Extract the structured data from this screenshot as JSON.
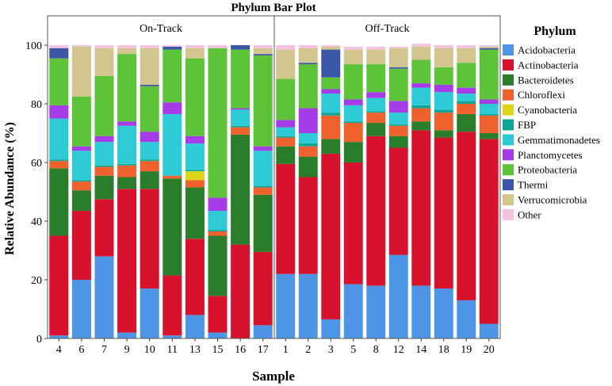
{
  "chart_data": {
    "type": "bar",
    "stacked": true,
    "title": "Phylum Bar Plot",
    "xlabel": "Sample",
    "ylabel": "Relative Abundance (%)",
    "ylim": [
      0,
      110
    ],
    "yticks": [
      0,
      20,
      40,
      60,
      80,
      100
    ],
    "grid": false,
    "legend_title": "Phylum",
    "legend_position": "right",
    "series": [
      {
        "name": "Acidobacteria",
        "color": "#4f95e6"
      },
      {
        "name": "Actinobacteria",
        "color": "#d7122c"
      },
      {
        "name": "Bacteroidetes",
        "color": "#2a7d2a"
      },
      {
        "name": "Chloroflexi",
        "color": "#f0622d"
      },
      {
        "name": "Cyanobacteria",
        "color": "#dfd51c"
      },
      {
        "name": "FBP",
        "color": "#11a597"
      },
      {
        "name": "Gemmatimonadetes",
        "color": "#2ecbd6"
      },
      {
        "name": "Planctomycetes",
        "color": "#a53ce8"
      },
      {
        "name": "Proteobacteria",
        "color": "#5dc43a"
      },
      {
        "name": "Thermi",
        "color": "#3d57a8"
      },
      {
        "name": "Verrucomicrobia",
        "color": "#d3c58e"
      },
      {
        "name": "Other",
        "color": "#f6c2e2"
      }
    ],
    "panels": [
      {
        "label": "On-Track",
        "samples": [
          {
            "name": "4",
            "values": [
              1,
              34,
              23,
              2.5,
              0,
              0.5,
              14,
              4.5,
              16,
              3.5,
              0,
              1
            ]
          },
          {
            "name": "6",
            "values": [
              20,
              23.5,
              7,
              3,
              0,
              0.5,
              10,
              1.5,
              17,
              0,
              17,
              0.5
            ]
          },
          {
            "name": "7",
            "values": [
              28,
              19.5,
              8,
              3,
              0,
              0.5,
              8,
              2,
              20.5,
              0,
              9.5,
              1
            ]
          },
          {
            "name": "9",
            "values": [
              2,
              49,
              4,
              4,
              0,
              0.5,
              13,
              1.5,
              23,
              0,
              2,
              1
            ]
          },
          {
            "name": "10",
            "values": [
              17,
              34,
              6,
              3.5,
              0,
              0.5,
              6,
              3.5,
              15.5,
              0.5,
              12.5,
              1
            ]
          },
          {
            "name": "11",
            "values": [
              1,
              20.5,
              33,
              1,
              0,
              0,
              21,
              4,
              18,
              1,
              0,
              0.5
            ]
          },
          {
            "name": "13",
            "values": [
              8,
              26,
              17.5,
              2.5,
              3,
              0.5,
              9,
              2.5,
              26.5,
              0,
              3.5,
              1
            ]
          },
          {
            "name": "15",
            "values": [
              2,
              12.5,
              20.5,
              1.5,
              0,
              0.5,
              6.5,
              4.5,
              51,
              0,
              0,
              1
            ]
          },
          {
            "name": "16",
            "values": [
              0,
              32,
              37.5,
              2.5,
              0,
              0.5,
              5.5,
              0.5,
              20,
              1.5,
              0,
              0
            ]
          },
          {
            "name": "17",
            "values": [
              4.5,
              25,
              19.5,
              2.5,
              0,
              0.5,
              12,
              1.5,
              31,
              0.5,
              2,
              1
            ]
          }
        ]
      },
      {
        "label": "Off-Track",
        "samples": [
          {
            "name": "1",
            "values": [
              22,
              37.5,
              6,
              3,
              0,
              0.5,
              3,
              2.5,
              14,
              0,
              10,
              1.5
            ]
          },
          {
            "name": "2",
            "values": [
              22,
              33,
              7,
              3.5,
              0,
              1,
              3.5,
              8.5,
              15,
              0.5,
              5,
              1
            ]
          },
          {
            "name": "3",
            "values": [
              6.5,
              56.5,
              5,
              8,
              0,
              1,
              6.5,
              1.5,
              4,
              9.5,
              1,
              0.5
            ]
          },
          {
            "name": "5",
            "values": [
              18.5,
              41.5,
              7,
              6.5,
              0,
              0.5,
              5.5,
              2,
              12,
              0,
              5,
              1
            ]
          },
          {
            "name": "8",
            "values": [
              18,
              51,
              4.5,
              3.5,
              0,
              0.5,
              4.5,
              2,
              9.5,
              0,
              5,
              1
            ]
          },
          {
            "name": "12",
            "values": [
              28.5,
              36.5,
              4,
              3.5,
              0,
              0.5,
              4,
              4,
              11,
              0.5,
              6.5,
              0.5
            ]
          },
          {
            "name": "14",
            "values": [
              18,
              53,
              3,
              4.5,
              0,
              1,
              6,
              1.5,
              8,
              0,
              4.5,
              1
            ]
          },
          {
            "name": "18",
            "values": [
              17,
              51.5,
              2.5,
              6,
              0,
              1,
              6,
              2.5,
              6,
              0,
              6.5,
              1
            ]
          },
          {
            "name": "19",
            "values": [
              13,
              57.5,
              6,
              3.5,
              0,
              1,
              2.5,
              2,
              8.5,
              0,
              5,
              1
            ]
          },
          {
            "name": "20",
            "values": [
              5,
              63,
              2,
              6,
              0,
              0.5,
              3.5,
              1.5,
              17,
              0.5,
              0.5,
              0.5
            ]
          }
        ]
      }
    ]
  }
}
